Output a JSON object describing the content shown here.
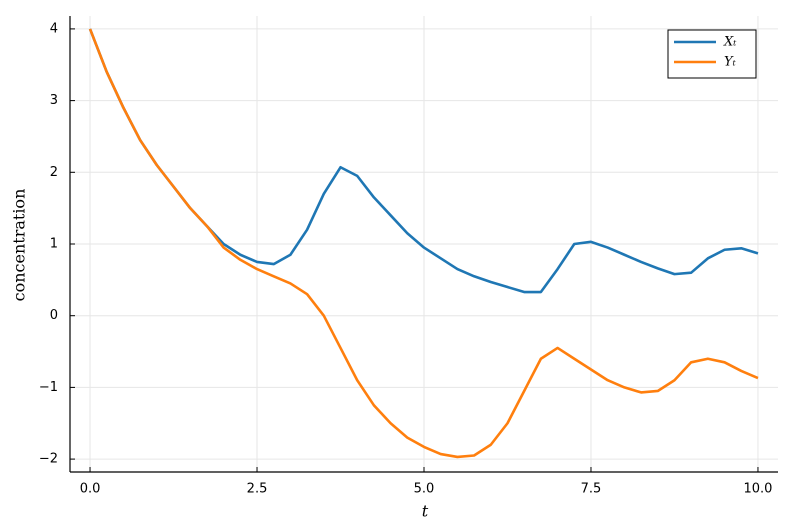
{
  "chart_data": {
    "type": "line",
    "xlabel": "t",
    "ylabel": "concentration",
    "x": [
      0,
      0.25,
      0.5,
      0.75,
      1.0,
      1.25,
      1.5,
      1.75,
      2.0,
      2.25,
      2.5,
      2.75,
      3.0,
      3.25,
      3.5,
      3.75,
      4.0,
      4.25,
      4.5,
      4.75,
      5.0,
      5.25,
      5.5,
      5.75,
      6.0,
      6.25,
      6.5,
      6.75,
      7.0,
      7.25,
      7.5,
      7.75,
      8.0,
      8.25,
      8.5,
      8.75,
      9.0,
      9.25,
      9.5,
      9.75,
      10.0
    ],
    "series": [
      {
        "name": "Xₜ",
        "color": "#1f77b4",
        "values": [
          4,
          3.4,
          2.9,
          2.45,
          2.1,
          1.8,
          1.5,
          1.25,
          1.0,
          0.85,
          0.75,
          0.72,
          0.85,
          1.2,
          1.7,
          2.07,
          1.95,
          1.65,
          1.4,
          1.15,
          0.95,
          0.8,
          0.65,
          0.55,
          0.47,
          0.4,
          0.33,
          0.33,
          0.65,
          1.0,
          1.03,
          0.95,
          0.85,
          0.75,
          0.66,
          0.58,
          0.6,
          0.8,
          0.92,
          0.94,
          0.87
        ]
      },
      {
        "name": "Yₜ",
        "color": "#ff7f0e",
        "values": [
          4,
          3.4,
          2.9,
          2.45,
          2.1,
          1.8,
          1.5,
          1.25,
          0.95,
          0.78,
          0.65,
          0.55,
          0.45,
          0.3,
          0.0,
          -0.45,
          -0.9,
          -1.25,
          -1.5,
          -1.7,
          -1.83,
          -1.93,
          -1.97,
          -1.95,
          -1.8,
          -1.5,
          -1.05,
          -0.6,
          -0.45,
          -0.6,
          -0.75,
          -0.9,
          -1.0,
          -1.07,
          -1.05,
          -0.9,
          -0.65,
          -0.6,
          -0.65,
          -0.77,
          -0.87
        ]
      }
    ],
    "xlim": [
      -0.3,
      10.3
    ],
    "ylim": [
      -2.18,
      4.18
    ],
    "xticks": [
      {
        "value": 0,
        "label": "0.0"
      },
      {
        "value": 2.5,
        "label": "2.5"
      },
      {
        "value": 5,
        "label": "5.0"
      },
      {
        "value": 7.5,
        "label": "7.5"
      },
      {
        "value": 10,
        "label": "10.0"
      }
    ],
    "yticks": [
      {
        "value": -2,
        "label": "−2"
      },
      {
        "value": -1,
        "label": "−1"
      },
      0,
      1,
      2,
      3,
      4
    ],
    "grid": true,
    "legend": "top-right"
  }
}
